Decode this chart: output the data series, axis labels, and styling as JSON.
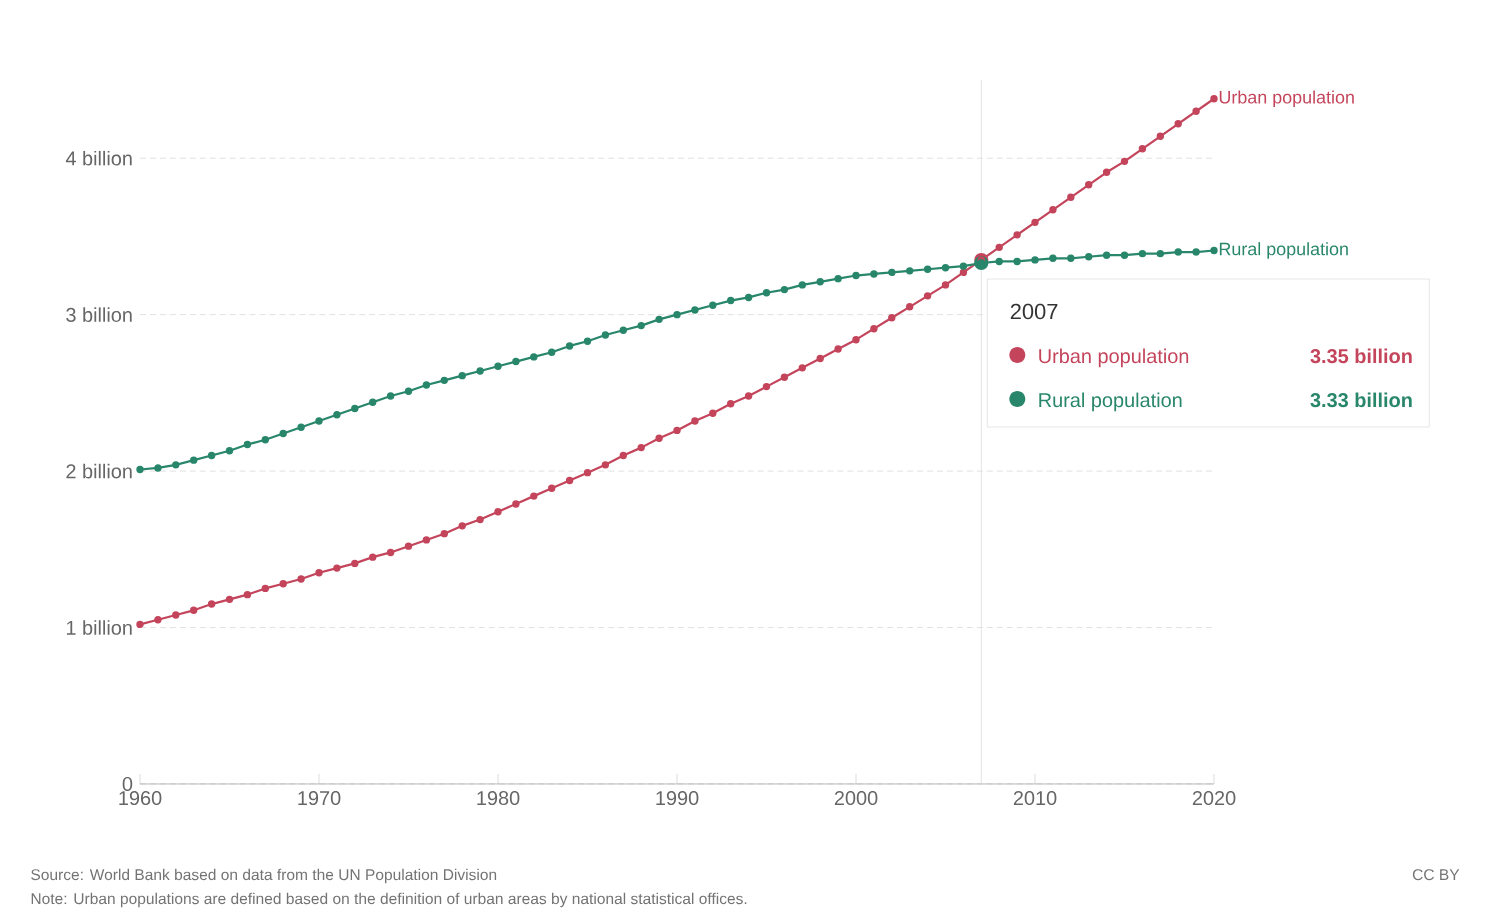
{
  "chart_data": {
    "type": "line",
    "x": [
      1960,
      1961,
      1962,
      1963,
      1964,
      1965,
      1966,
      1967,
      1968,
      1969,
      1970,
      1971,
      1972,
      1973,
      1974,
      1975,
      1976,
      1977,
      1978,
      1979,
      1980,
      1981,
      1982,
      1983,
      1984,
      1985,
      1986,
      1987,
      1988,
      1989,
      1990,
      1991,
      1992,
      1993,
      1994,
      1995,
      1996,
      1997,
      1998,
      1999,
      2000,
      2001,
      2002,
      2003,
      2004,
      2005,
      2006,
      2007,
      2008,
      2009,
      2010,
      2011,
      2012,
      2013,
      2014,
      2015,
      2016,
      2017,
      2018,
      2019,
      2020
    ],
    "series": [
      {
        "name": "Urban population",
        "color": "#c4455b",
        "values": [
          1.02,
          1.05,
          1.08,
          1.11,
          1.15,
          1.18,
          1.21,
          1.25,
          1.28,
          1.31,
          1.35,
          1.38,
          1.41,
          1.45,
          1.48,
          1.52,
          1.56,
          1.6,
          1.65,
          1.69,
          1.74,
          1.79,
          1.84,
          1.89,
          1.94,
          1.99,
          2.04,
          2.1,
          2.15,
          2.21,
          2.26,
          2.32,
          2.37,
          2.43,
          2.48,
          2.54,
          2.6,
          2.66,
          2.72,
          2.78,
          2.84,
          2.91,
          2.98,
          3.05,
          3.12,
          3.19,
          3.27,
          3.35,
          3.43,
          3.51,
          3.59,
          3.67,
          3.75,
          3.83,
          3.91,
          3.98,
          4.06,
          4.14,
          4.22,
          4.3,
          4.38
        ]
      },
      {
        "name": "Rural population",
        "color": "#28866a",
        "values": [
          2.01,
          2.02,
          2.04,
          2.07,
          2.1,
          2.13,
          2.17,
          2.2,
          2.24,
          2.28,
          2.32,
          2.36,
          2.4,
          2.44,
          2.48,
          2.51,
          2.55,
          2.58,
          2.61,
          2.64,
          2.67,
          2.7,
          2.73,
          2.76,
          2.8,
          2.83,
          2.87,
          2.9,
          2.93,
          2.97,
          3.0,
          3.03,
          3.06,
          3.09,
          3.11,
          3.14,
          3.16,
          3.19,
          3.21,
          3.23,
          3.25,
          3.26,
          3.27,
          3.28,
          3.29,
          3.3,
          3.31,
          3.33,
          3.34,
          3.34,
          3.35,
          3.36,
          3.36,
          3.37,
          3.38,
          3.38,
          3.39,
          3.39,
          3.4,
          3.4,
          3.41
        ]
      }
    ],
    "xlim": [
      1960,
      2020
    ],
    "xticks": [
      1960,
      1970,
      1980,
      1990,
      2000,
      2010,
      2020
    ],
    "ylim": [
      0,
      4.5
    ],
    "yticks": [
      0,
      {
        "value": 1,
        "label": "1 billion"
      },
      {
        "value": 2,
        "label": "2 billion"
      },
      {
        "value": 3,
        "label": "3 billion"
      },
      {
        "value": 4,
        "label": "4 billion"
      }
    ],
    "grid": "y",
    "legend": "right",
    "marker": "circle",
    "line_style": "solid",
    "ref_lines": [
      {
        "axis": "x",
        "value": 2007,
        "color": "#dddddd"
      }
    ],
    "annotations": [
      "Source: World Bank based on data from the UN Population Division",
      "Note: Urban populations are defined based on the definition of urban areas by national statistical offices.",
      "CC BY",
      "2007",
      "3.35 billion",
      "3.33 billion"
    ]
  }
}
